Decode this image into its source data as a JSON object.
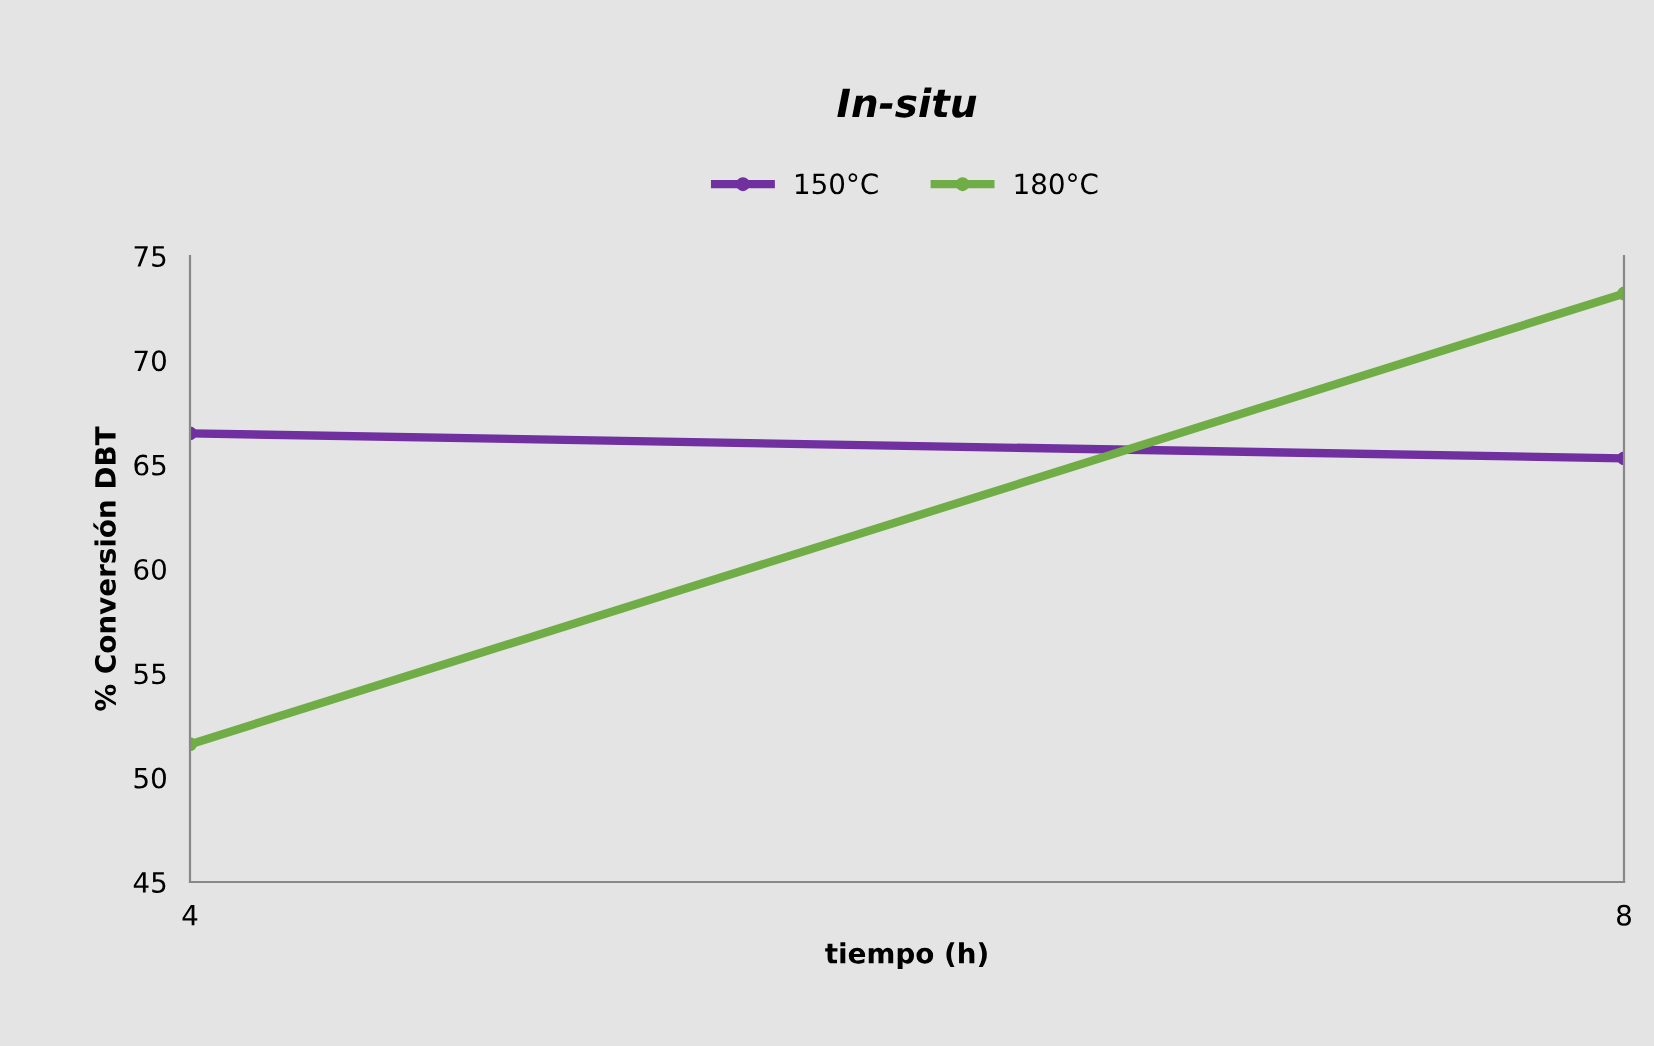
{
  "chart_data": {
    "type": "line",
    "title": "In-situ",
    "xlabel": "tiempo (h)",
    "ylabel": "% Conversión DBT",
    "x": [
      4,
      8
    ],
    "series": [
      {
        "name": "150°C",
        "color": "#7030a0",
        "values": [
          66.5,
          65.3
        ]
      },
      {
        "name": "180°C",
        "color": "#70ad47",
        "values": [
          51.6,
          73.2
        ]
      }
    ],
    "xlim": [
      4,
      8
    ],
    "xticks": [
      4,
      8
    ],
    "ylim": [
      45,
      75
    ],
    "yticks": [
      45,
      50,
      55,
      60,
      65,
      70,
      75
    ],
    "grid": false,
    "legend": "top",
    "marker": "circle",
    "line_style": "solid"
  }
}
